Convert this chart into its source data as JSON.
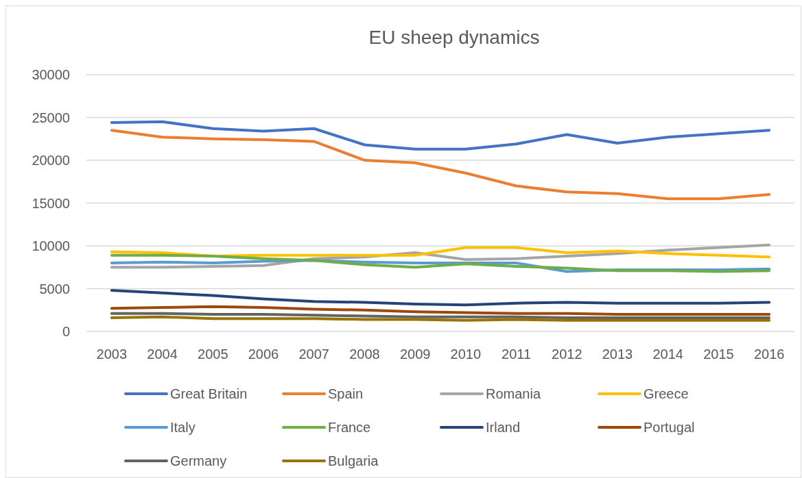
{
  "chart_data": {
    "type": "line",
    "title": "EU sheep dynamics",
    "categories": [
      "2003",
      "2004",
      "2005",
      "2006",
      "2007",
      "2008",
      "2009",
      "2010",
      "2011",
      "2012",
      "2013",
      "2014",
      "2015",
      "2016"
    ],
    "ylim": [
      0,
      30000
    ],
    "yticks": [
      0,
      5000,
      10000,
      15000,
      20000,
      25000,
      30000
    ],
    "grid": "y",
    "legend": "bottom",
    "marker": "none",
    "line_style": "solid",
    "series": [
      {
        "name": "Great Britain",
        "color": "#4472c4",
        "values": [
          24400,
          24500,
          23700,
          23400,
          23700,
          21800,
          21300,
          21300,
          21900,
          23000,
          22000,
          22700,
          23100,
          23500
        ]
      },
      {
        "name": "Spain",
        "color": "#ed7d31",
        "values": [
          23500,
          22700,
          22500,
          22400,
          22200,
          20000,
          19700,
          18500,
          17000,
          16300,
          16100,
          15500,
          15500,
          16000
        ]
      },
      {
        "name": "Romania",
        "color": "#a5a5a5",
        "values": [
          7500,
          7500,
          7600,
          7700,
          8500,
          8700,
          9200,
          8400,
          8500,
          8800,
          9100,
          9500,
          9800,
          10100
        ]
      },
      {
        "name": "Greece",
        "color": "#ffc000",
        "values": [
          9300,
          9200,
          8800,
          8900,
          8900,
          8900,
          8900,
          9800,
          9800,
          9200,
          9400,
          9100,
          8900,
          8700
        ]
      },
      {
        "name": "Italy",
        "color": "#5b9bd5",
        "values": [
          8000,
          8100,
          8000,
          8200,
          8300,
          8100,
          8000,
          8000,
          8000,
          7000,
          7200,
          7200,
          7200,
          7300
        ]
      },
      {
        "name": "France",
        "color": "#70ad47",
        "values": [
          8900,
          8900,
          8800,
          8500,
          8300,
          7800,
          7500,
          7900,
          7600,
          7400,
          7100,
          7100,
          7000,
          7100
        ]
      },
      {
        "name": "Irland",
        "color": "#264478",
        "values": [
          4800,
          4500,
          4200,
          3800,
          3500,
          3400,
          3200,
          3100,
          3300,
          3400,
          3300,
          3300,
          3300,
          3400
        ]
      },
      {
        "name": "Portugal",
        "color": "#9e480e",
        "values": [
          2700,
          2800,
          2900,
          2800,
          2600,
          2500,
          2300,
          2200,
          2100,
          2100,
          2000,
          2000,
          2000,
          2000
        ]
      },
      {
        "name": "Germany",
        "color": "#636363",
        "values": [
          2100,
          2100,
          2000,
          2000,
          1900,
          1800,
          1700,
          1700,
          1700,
          1600,
          1600,
          1600,
          1600,
          1600
        ]
      },
      {
        "name": "Bulgaria",
        "color": "#997300",
        "values": [
          1600,
          1700,
          1500,
          1500,
          1500,
          1400,
          1400,
          1300,
          1400,
          1300,
          1300,
          1300,
          1300,
          1300
        ]
      }
    ]
  }
}
